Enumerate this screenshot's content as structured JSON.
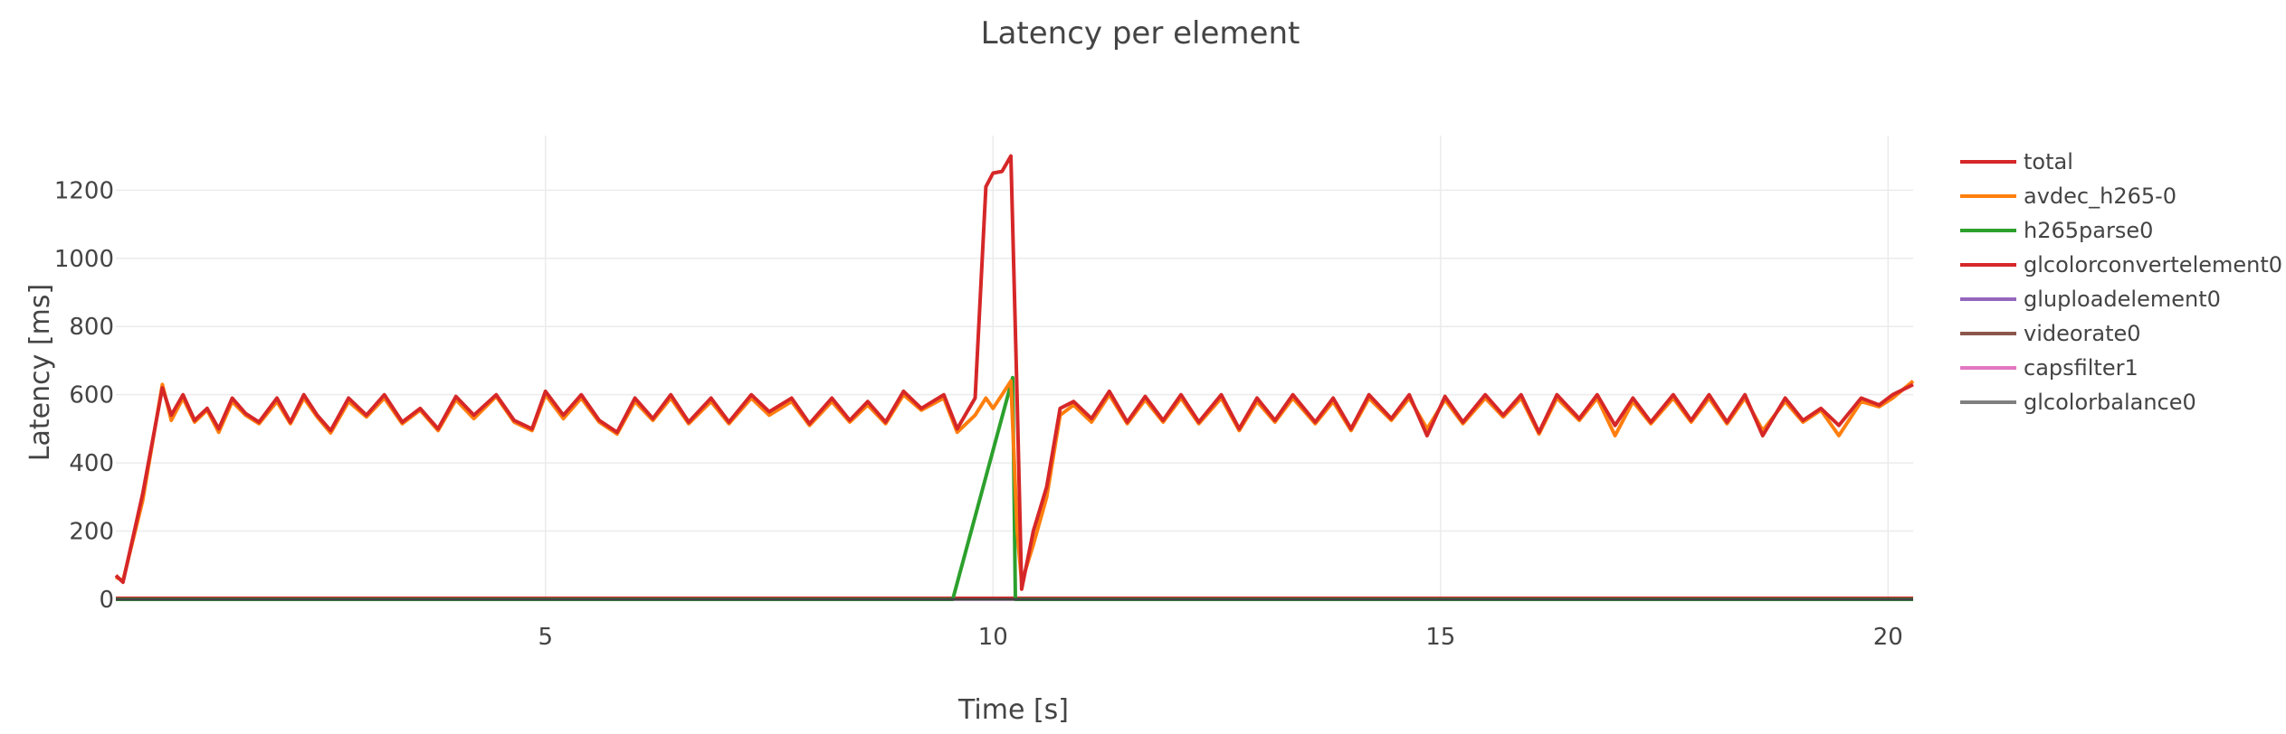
{
  "chart_data": {
    "type": "line",
    "title": "Latency per element",
    "xlabel": "Time [s]",
    "ylabel": "Latency [ms]",
    "xlim": [
      0.2,
      20.28
    ],
    "ylim": [
      0,
      1360
    ],
    "xticks": [
      5,
      10,
      15,
      20
    ],
    "yticks": [
      0,
      200,
      400,
      600,
      800,
      1000,
      1200
    ],
    "grid": true,
    "legend_position": "right",
    "series": [
      {
        "name": "total",
        "color": "#d62728",
        "points": [
          [
            0.2,
            70
          ],
          [
            0.28,
            50
          ],
          [
            0.5,
            310
          ],
          [
            0.72,
            620
          ],
          [
            0.82,
            540
          ],
          [
            0.95,
            600
          ],
          [
            1.08,
            525
          ],
          [
            1.22,
            560
          ],
          [
            1.35,
            500
          ],
          [
            1.5,
            590
          ],
          [
            1.65,
            545
          ],
          [
            1.8,
            520
          ],
          [
            2.0,
            590
          ],
          [
            2.15,
            520
          ],
          [
            2.3,
            600
          ],
          [
            2.45,
            540
          ],
          [
            2.6,
            495
          ],
          [
            2.8,
            590
          ],
          [
            3.0,
            540
          ],
          [
            3.2,
            600
          ],
          [
            3.4,
            520
          ],
          [
            3.6,
            560
          ],
          [
            3.8,
            500
          ],
          [
            4.0,
            595
          ],
          [
            4.2,
            540
          ],
          [
            4.45,
            600
          ],
          [
            4.65,
            525
          ],
          [
            4.85,
            500
          ],
          [
            5.0,
            610
          ],
          [
            5.2,
            540
          ],
          [
            5.4,
            600
          ],
          [
            5.6,
            525
          ],
          [
            5.8,
            490
          ],
          [
            6.0,
            590
          ],
          [
            6.2,
            530
          ],
          [
            6.4,
            600
          ],
          [
            6.6,
            520
          ],
          [
            6.85,
            590
          ],
          [
            7.05,
            520
          ],
          [
            7.3,
            600
          ],
          [
            7.5,
            550
          ],
          [
            7.75,
            590
          ],
          [
            7.95,
            515
          ],
          [
            8.2,
            590
          ],
          [
            8.4,
            525
          ],
          [
            8.6,
            580
          ],
          [
            8.8,
            520
          ],
          [
            9.0,
            610
          ],
          [
            9.2,
            560
          ],
          [
            9.45,
            600
          ],
          [
            9.6,
            500
          ],
          [
            9.8,
            590
          ],
          [
            9.92,
            1210
          ],
          [
            10.0,
            1250
          ],
          [
            10.1,
            1255
          ],
          [
            10.2,
            1300
          ],
          [
            10.27,
            580
          ],
          [
            10.32,
            30
          ],
          [
            10.45,
            200
          ],
          [
            10.6,
            330
          ],
          [
            10.75,
            560
          ],
          [
            10.9,
            580
          ],
          [
            11.1,
            530
          ],
          [
            11.3,
            610
          ],
          [
            11.5,
            520
          ],
          [
            11.7,
            595
          ],
          [
            11.9,
            525
          ],
          [
            12.1,
            600
          ],
          [
            12.3,
            520
          ],
          [
            12.55,
            600
          ],
          [
            12.75,
            500
          ],
          [
            12.95,
            590
          ],
          [
            13.15,
            525
          ],
          [
            13.35,
            600
          ],
          [
            13.6,
            520
          ],
          [
            13.8,
            590
          ],
          [
            14.0,
            500
          ],
          [
            14.2,
            600
          ],
          [
            14.45,
            530
          ],
          [
            14.65,
            600
          ],
          [
            14.85,
            480
          ],
          [
            15.05,
            595
          ],
          [
            15.25,
            520
          ],
          [
            15.5,
            600
          ],
          [
            15.7,
            540
          ],
          [
            15.9,
            600
          ],
          [
            16.1,
            490
          ],
          [
            16.3,
            600
          ],
          [
            16.55,
            530
          ],
          [
            16.75,
            600
          ],
          [
            16.95,
            510
          ],
          [
            17.15,
            590
          ],
          [
            17.35,
            520
          ],
          [
            17.6,
            600
          ],
          [
            17.8,
            525
          ],
          [
            18.0,
            600
          ],
          [
            18.2,
            520
          ],
          [
            18.4,
            600
          ],
          [
            18.6,
            480
          ],
          [
            18.85,
            590
          ],
          [
            19.05,
            525
          ],
          [
            19.25,
            560
          ],
          [
            19.45,
            510
          ],
          [
            19.7,
            590
          ],
          [
            19.9,
            570
          ],
          [
            20.05,
            600
          ],
          [
            20.28,
            630
          ]
        ]
      },
      {
        "name": "avdec_h265-0",
        "color": "#ff7f0e",
        "points": [
          [
            0.2,
            65
          ],
          [
            0.28,
            55
          ],
          [
            0.5,
            290
          ],
          [
            0.72,
            630
          ],
          [
            0.82,
            525
          ],
          [
            0.95,
            590
          ],
          [
            1.08,
            520
          ],
          [
            1.22,
            555
          ],
          [
            1.35,
            490
          ],
          [
            1.5,
            580
          ],
          [
            1.65,
            540
          ],
          [
            1.8,
            515
          ],
          [
            2.0,
            580
          ],
          [
            2.15,
            515
          ],
          [
            2.3,
            590
          ],
          [
            2.45,
            535
          ],
          [
            2.6,
            488
          ],
          [
            2.8,
            580
          ],
          [
            3.0,
            535
          ],
          [
            3.2,
            590
          ],
          [
            3.4,
            515
          ],
          [
            3.6,
            555
          ],
          [
            3.8,
            495
          ],
          [
            4.0,
            585
          ],
          [
            4.2,
            530
          ],
          [
            4.45,
            595
          ],
          [
            4.65,
            520
          ],
          [
            4.85,
            495
          ],
          [
            5.0,
            600
          ],
          [
            5.2,
            530
          ],
          [
            5.4,
            590
          ],
          [
            5.6,
            520
          ],
          [
            5.8,
            485
          ],
          [
            6.0,
            580
          ],
          [
            6.2,
            525
          ],
          [
            6.4,
            590
          ],
          [
            6.6,
            515
          ],
          [
            6.85,
            580
          ],
          [
            7.05,
            515
          ],
          [
            7.3,
            590
          ],
          [
            7.5,
            540
          ],
          [
            7.75,
            580
          ],
          [
            7.95,
            510
          ],
          [
            8.2,
            580
          ],
          [
            8.4,
            520
          ],
          [
            8.6,
            570
          ],
          [
            8.8,
            515
          ],
          [
            9.0,
            600
          ],
          [
            9.2,
            555
          ],
          [
            9.45,
            590
          ],
          [
            9.6,
            490
          ],
          [
            9.8,
            540
          ],
          [
            9.92,
            590
          ],
          [
            10.0,
            560
          ],
          [
            10.1,
            600
          ],
          [
            10.2,
            640
          ],
          [
            10.27,
            200
          ],
          [
            10.32,
            50
          ],
          [
            10.45,
            160
          ],
          [
            10.6,
            300
          ],
          [
            10.75,
            540
          ],
          [
            10.9,
            570
          ],
          [
            11.1,
            520
          ],
          [
            11.3,
            600
          ],
          [
            11.5,
            515
          ],
          [
            11.7,
            585
          ],
          [
            11.9,
            520
          ],
          [
            12.1,
            590
          ],
          [
            12.3,
            515
          ],
          [
            12.55,
            590
          ],
          [
            12.75,
            495
          ],
          [
            12.95,
            580
          ],
          [
            13.15,
            520
          ],
          [
            13.35,
            590
          ],
          [
            13.6,
            515
          ],
          [
            13.8,
            580
          ],
          [
            14.0,
            495
          ],
          [
            14.2,
            590
          ],
          [
            14.45,
            525
          ],
          [
            14.65,
            590
          ],
          [
            14.85,
            500
          ],
          [
            15.05,
            585
          ],
          [
            15.25,
            515
          ],
          [
            15.5,
            590
          ],
          [
            15.7,
            535
          ],
          [
            15.9,
            590
          ],
          [
            16.1,
            485
          ],
          [
            16.3,
            590
          ],
          [
            16.55,
            525
          ],
          [
            16.75,
            590
          ],
          [
            16.95,
            480
          ],
          [
            17.15,
            580
          ],
          [
            17.35,
            515
          ],
          [
            17.6,
            590
          ],
          [
            17.8,
            520
          ],
          [
            18.0,
            590
          ],
          [
            18.2,
            515
          ],
          [
            18.4,
            590
          ],
          [
            18.6,
            495
          ],
          [
            18.85,
            580
          ],
          [
            19.05,
            520
          ],
          [
            19.25,
            555
          ],
          [
            19.45,
            480
          ],
          [
            19.7,
            580
          ],
          [
            19.9,
            565
          ],
          [
            20.05,
            590
          ],
          [
            20.28,
            640
          ]
        ]
      },
      {
        "name": "h265parse0",
        "color": "#2ca02c",
        "points": [
          [
            0.2,
            0
          ],
          [
            9.55,
            0
          ],
          [
            10.22,
            650
          ],
          [
            10.25,
            0
          ],
          [
            20.28,
            0
          ]
        ]
      },
      {
        "name": "glcolorconvertelement0",
        "color": "#d62728",
        "points": [
          [
            0.2,
            3
          ],
          [
            20.28,
            3
          ]
        ]
      },
      {
        "name": "gluploadelement0",
        "color": "#9467bd",
        "points": [
          [
            0.2,
            1
          ],
          [
            20.28,
            1
          ]
        ]
      },
      {
        "name": "videorate0",
        "color": "#8c564b",
        "points": [
          [
            0.2,
            2
          ],
          [
            20.28,
            2
          ]
        ]
      },
      {
        "name": "capsfilter1",
        "color": "#e377c2",
        "points": [
          [
            0.2,
            1
          ],
          [
            20.28,
            1
          ]
        ]
      },
      {
        "name": "glcolorbalance0",
        "color": "#7f7f7f",
        "points": [
          [
            0.2,
            2
          ],
          [
            20.28,
            2
          ]
        ]
      }
    ]
  }
}
